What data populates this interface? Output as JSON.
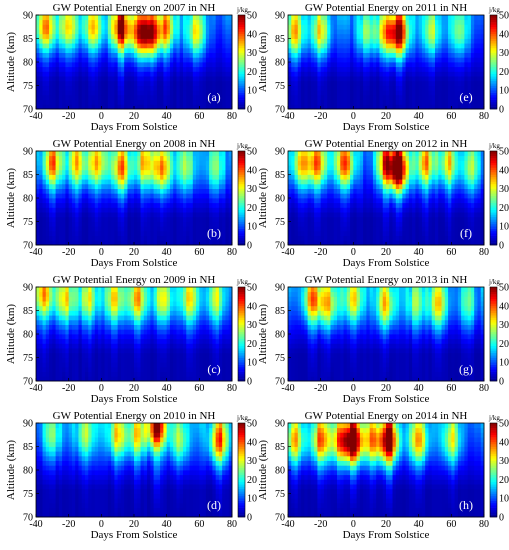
{
  "figure": {
    "x_ticks": [
      -40,
      -20,
      0,
      20,
      40,
      60,
      80
    ],
    "y_ticks": [
      70,
      75,
      80,
      85,
      90
    ],
    "cbar_ticks": [
      0,
      10,
      20,
      30,
      40,
      50
    ],
    "cbar_unit": "j/kg",
    "colormap": [
      "#00008f",
      "#0000ff",
      "#0080ff",
      "#00ffff",
      "#80ff80",
      "#ffff00",
      "#ff8000",
      "#ff0000",
      "#800000"
    ]
  },
  "chart_data": [
    {
      "type": "heatmap",
      "panel": "(a)",
      "title": "GW Potential Energy on 2007 in NH",
      "xlabel": "Days From Solstice",
      "ylabel": "Altitude (km)",
      "xlim": [
        -40,
        80
      ],
      "ylim": [
        70,
        90
      ],
      "clim": [
        0,
        50
      ],
      "peaks": [
        {
          "day": -34,
          "alt": 87,
          "value": 26
        },
        {
          "day": -20,
          "alt": 87,
          "value": 20
        },
        {
          "day": -5,
          "alt": 87,
          "value": 22
        },
        {
          "day": 12,
          "alt": 87,
          "value": 36
        },
        {
          "day": 24,
          "alt": 86,
          "value": 30
        },
        {
          "day": 31,
          "alt": 86,
          "value": 28
        },
        {
          "day": 40,
          "alt": 87,
          "value": 22
        },
        {
          "day": 58,
          "alt": 86,
          "value": 20
        }
      ]
    },
    {
      "type": "heatmap",
      "panel": "(b)",
      "title": "GW Potential Energy on 2008 in NH",
      "xlabel": "Days From Solstice",
      "ylabel": "Altitude (km)",
      "xlim": [
        -40,
        80
      ],
      "ylim": [
        70,
        90
      ],
      "clim": [
        0,
        50
      ],
      "peaks": [
        {
          "day": -30,
          "alt": 87,
          "value": 26
        },
        {
          "day": -15,
          "alt": 87,
          "value": 20
        },
        {
          "day": -3,
          "alt": 87,
          "value": 22
        },
        {
          "day": 12,
          "alt": 86,
          "value": 26
        },
        {
          "day": 26,
          "alt": 87,
          "value": 20
        },
        {
          "day": 37,
          "alt": 86,
          "value": 26
        },
        {
          "day": 52,
          "alt": 86,
          "value": 15
        },
        {
          "day": 70,
          "alt": 86,
          "value": 14
        }
      ]
    },
    {
      "type": "heatmap",
      "panel": "(c)",
      "title": "GW Potential Energy on 2009 in NH",
      "xlabel": "Days From Solstice",
      "ylabel": "Altitude (km)",
      "xlim": [
        -40,
        80
      ],
      "ylim": [
        70,
        90
      ],
      "clim": [
        0,
        50
      ],
      "peaks": [
        {
          "day": -35,
          "alt": 88,
          "value": 22
        },
        {
          "day": -22,
          "alt": 87,
          "value": 20
        },
        {
          "day": -8,
          "alt": 87,
          "value": 18
        },
        {
          "day": 8,
          "alt": 87,
          "value": 20
        },
        {
          "day": 22,
          "alt": 87,
          "value": 22
        },
        {
          "day": 38,
          "alt": 87,
          "value": 20
        },
        {
          "day": 54,
          "alt": 87,
          "value": 18
        },
        {
          "day": 70,
          "alt": 87,
          "value": 16
        }
      ]
    },
    {
      "type": "heatmap",
      "panel": "(d)",
      "title": "GW Potential Energy on 2010 in NH",
      "xlabel": "Days From Solstice",
      "ylabel": "Altitude (km)",
      "xlim": [
        -40,
        80
      ],
      "ylim": [
        70,
        90
      ],
      "clim": [
        0,
        50
      ],
      "peaks": [
        {
          "day": -30,
          "alt": 87,
          "value": 14
        },
        {
          "day": -10,
          "alt": 87,
          "value": 14
        },
        {
          "day": 10,
          "alt": 87,
          "value": 20
        },
        {
          "day": 22,
          "alt": 87,
          "value": 18
        },
        {
          "day": 34,
          "alt": 89,
          "value": 34
        },
        {
          "day": 48,
          "alt": 86,
          "value": 16
        },
        {
          "day": 72,
          "alt": 86,
          "value": 28
        }
      ]
    },
    {
      "type": "heatmap",
      "panel": "(e)",
      "title": "GW Potential Energy on 2011 in NH",
      "xlabel": "Days From Solstice",
      "ylabel": "Altitude (km)",
      "xlim": [
        -40,
        80
      ],
      "ylim": [
        70,
        90
      ],
      "clim": [
        0,
        50
      ],
      "peaks": [
        {
          "day": -36,
          "alt": 86,
          "value": 22
        },
        {
          "day": -20,
          "alt": 86,
          "value": 20
        },
        {
          "day": 8,
          "alt": 86,
          "value": 16
        },
        {
          "day": 20,
          "alt": 86,
          "value": 22
        },
        {
          "day": 28,
          "alt": 86,
          "value": 36
        },
        {
          "day": 48,
          "alt": 86,
          "value": 16
        },
        {
          "day": 65,
          "alt": 86,
          "value": 14
        }
      ]
    },
    {
      "type": "heatmap",
      "panel": "(f)",
      "title": "GW Potential Energy on 2012 in NH",
      "xlabel": "Days From Solstice",
      "ylabel": "Altitude (km)",
      "xlim": [
        -40,
        80
      ],
      "ylim": [
        70,
        90
      ],
      "clim": [
        0,
        50
      ],
      "peaks": [
        {
          "day": -32,
          "alt": 87,
          "value": 22
        },
        {
          "day": -22,
          "alt": 87,
          "value": 24
        },
        {
          "day": -5,
          "alt": 87,
          "value": 28
        },
        {
          "day": 20,
          "alt": 87,
          "value": 26
        },
        {
          "day": 28,
          "alt": 86,
          "value": 42
        },
        {
          "day": 44,
          "alt": 87,
          "value": 24
        },
        {
          "day": 58,
          "alt": 87,
          "value": 20
        },
        {
          "day": 72,
          "alt": 86,
          "value": 16
        }
      ]
    },
    {
      "type": "heatmap",
      "panel": "(g)",
      "title": "GW Potential Energy on 2013 in NH",
      "xlabel": "Days From Solstice",
      "ylabel": "Altitude (km)",
      "xlim": [
        -40,
        80
      ],
      "ylim": [
        70,
        90
      ],
      "clim": [
        0,
        50
      ],
      "peaks": [
        {
          "day": -25,
          "alt": 87,
          "value": 24
        },
        {
          "day": -15,
          "alt": 86,
          "value": 20
        },
        {
          "day": 0,
          "alt": 87,
          "value": 20
        },
        {
          "day": 20,
          "alt": 86,
          "value": 22
        },
        {
          "day": 38,
          "alt": 86,
          "value": 14
        },
        {
          "day": 52,
          "alt": 86,
          "value": 20
        },
        {
          "day": 70,
          "alt": 86,
          "value": 12
        }
      ]
    },
    {
      "type": "heatmap",
      "panel": "(h)",
      "title": "GW Potential Energy on 2014 in NH",
      "xlabel": "Days From Solstice",
      "ylabel": "Altitude (km)",
      "xlim": [
        -40,
        80
      ],
      "ylim": [
        70,
        90
      ],
      "clim": [
        0,
        50
      ],
      "peaks": [
        {
          "day": -36,
          "alt": 86,
          "value": 24
        },
        {
          "day": -20,
          "alt": 86,
          "value": 26
        },
        {
          "day": -8,
          "alt": 86,
          "value": 24
        },
        {
          "day": 0,
          "alt": 86,
          "value": 42
        },
        {
          "day": 12,
          "alt": 86,
          "value": 22
        },
        {
          "day": 22,
          "alt": 86,
          "value": 40
        },
        {
          "day": 40,
          "alt": 86,
          "value": 24
        },
        {
          "day": 60,
          "alt": 86,
          "value": 18
        }
      ]
    }
  ]
}
